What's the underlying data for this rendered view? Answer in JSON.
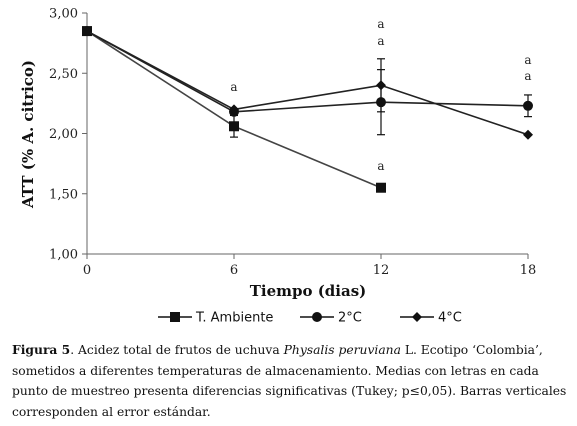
{
  "chart_data": {
    "type": "line",
    "title": "",
    "xlabel": "Tiempo (dias)",
    "ylabel": "ATT (% A. citrico)",
    "x": [
      0,
      6,
      12,
      18
    ],
    "x_ticks": [
      "0",
      "6",
      "12",
      "18"
    ],
    "xlim": [
      0,
      18
    ],
    "y_ticks": [
      "1,00",
      "1,50",
      "2,00",
      "2,50",
      "3,00"
    ],
    "ylim": [
      1.0,
      3.0
    ],
    "grid": false,
    "legend_position": "bottom",
    "series": [
      {
        "name": "T. Ambiente",
        "marker": "square",
        "values": [
          2.85,
          2.06,
          1.55,
          null
        ],
        "errors": [
          0,
          0.09,
          0,
          null
        ]
      },
      {
        "name": "2°C",
        "marker": "circle",
        "values": [
          2.85,
          2.18,
          2.26,
          2.23
        ],
        "errors": [
          0,
          0,
          0.27,
          0.09
        ]
      },
      {
        "name": "4°C",
        "marker": "diamond",
        "values": [
          2.85,
          2.2,
          2.4,
          1.99
        ],
        "errors": [
          0,
          0,
          0.22,
          0
        ]
      }
    ],
    "annotations": [
      {
        "x": 6,
        "labels": [
          "a"
        ]
      },
      {
        "x": 12,
        "labels": [
          "a",
          "a"
        ]
      },
      {
        "x": 12,
        "labels": [
          "a"
        ],
        "series": "T. Ambiente"
      },
      {
        "x": 18,
        "labels": [
          "a",
          "a"
        ]
      }
    ]
  },
  "caption": {
    "fig_label": "Figura 5",
    "text_1": ". Acidez total de frutos de uchuva ",
    "species": "Physalis peruviana",
    "text_2": " L. Ecotipo ‘Colombia’, sometidos a diferentes temperaturas de almacenamiento. Medias con letras en cada punto de muestreo presenta diferencias significativas (Tukey; p≤0,05). Barras verticales corresponden al error estándar."
  }
}
